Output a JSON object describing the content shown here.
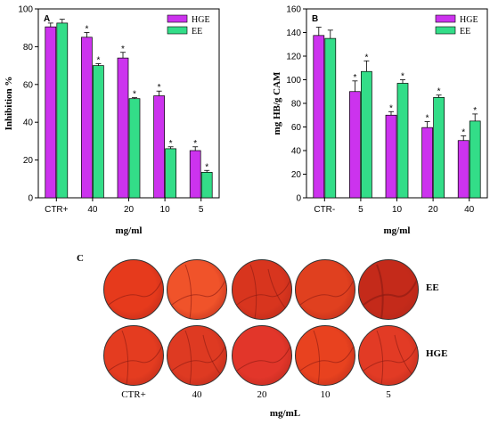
{
  "chart_data": [
    {
      "panel_label": "A",
      "type": "bar",
      "categories": [
        "CTR+",
        "40",
        "20",
        "10",
        "5"
      ],
      "series": [
        {
          "name": "HGE",
          "values": [
            90.5,
            85,
            74,
            54,
            25
          ],
          "errors": [
            2,
            2.5,
            3,
            2.5,
            2
          ],
          "significant": [
            false,
            true,
            true,
            true,
            true
          ]
        },
        {
          "name": "EE",
          "values": [
            92.5,
            70,
            52.5,
            26,
            13.5
          ],
          "errors": [
            2,
            1,
            0.5,
            1,
            1
          ],
          "significant": [
            false,
            true,
            true,
            true,
            true
          ]
        }
      ],
      "xlabel": "mg/ml",
      "ylabel": "Inhibition %",
      "ylim": [
        0,
        100
      ],
      "yticks": [
        "0",
        "20",
        "40",
        "60",
        "80",
        "100"
      ],
      "legend_position": "top-right",
      "significance_marker": "*"
    },
    {
      "panel_label": "B",
      "type": "bar",
      "categories": [
        "CTR-",
        "5",
        "10",
        "20",
        "40"
      ],
      "series": [
        {
          "name": "HGE",
          "values": [
            137.5,
            90,
            70,
            59.5,
            48.5
          ],
          "errors": [
            7,
            9,
            3,
            5,
            4
          ],
          "significant": [
            false,
            true,
            true,
            true,
            true
          ]
        },
        {
          "name": "EE",
          "values": [
            135,
            107,
            97,
            85,
            65
          ],
          "errors": [
            7,
            9,
            3,
            2,
            6
          ],
          "significant": [
            false,
            true,
            true,
            true,
            true
          ]
        }
      ],
      "xlabel": "mg/ml",
      "ylabel": "mg HB/g CAM",
      "ylim": [
        0,
        160
      ],
      "yticks": [
        "0",
        "20",
        "40",
        "60",
        "80",
        "100",
        "120",
        "140",
        "160"
      ],
      "legend_position": "top-right",
      "significance_marker": "*"
    }
  ],
  "colors": {
    "HGE": "#cc33ee",
    "EE": "#33dd88"
  },
  "panel_c": {
    "label": "C",
    "rows": [
      "EE",
      "HGE"
    ],
    "columns": [
      "CTR+",
      "40",
      "20",
      "10",
      "5"
    ],
    "xlabel": "mg/mL",
    "disc_colors": [
      [
        "#e63a1c",
        "#f0532a",
        "#d8351e",
        "#e0401f",
        "#c42a1a"
      ],
      [
        "#e43c20",
        "#de3a22",
        "#e2362a",
        "#e8421f",
        "#e23b25"
      ]
    ]
  }
}
